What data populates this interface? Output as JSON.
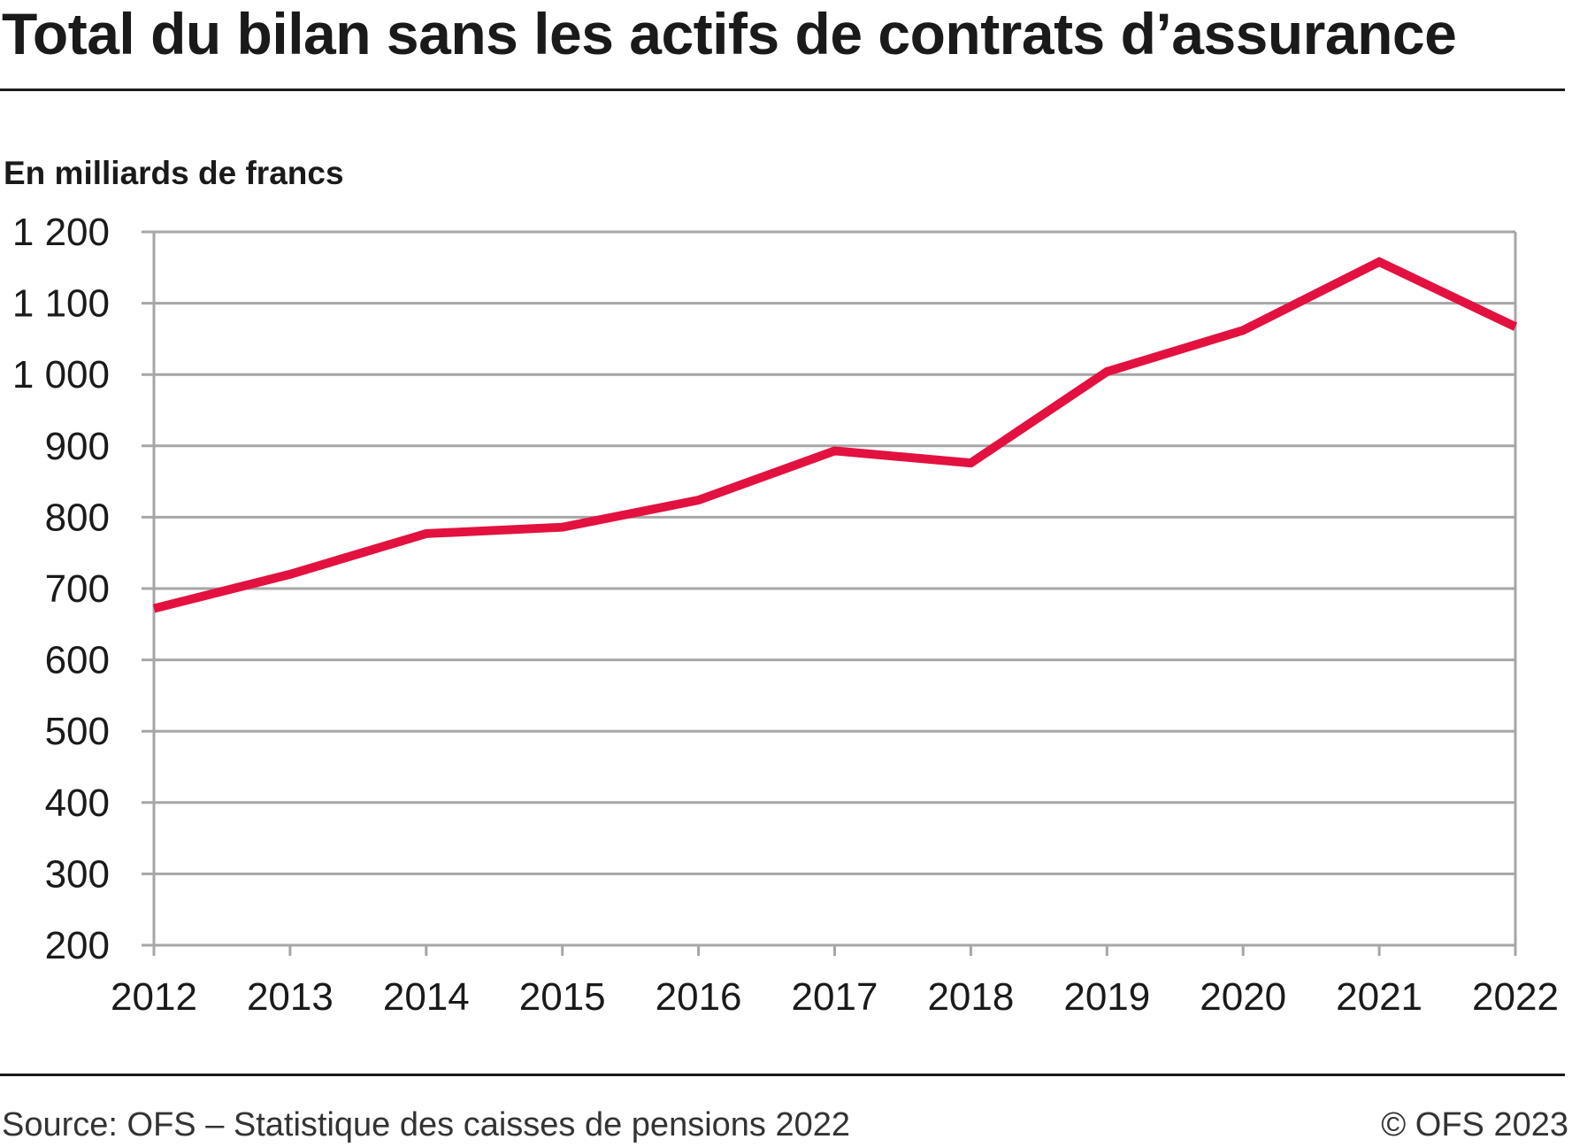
{
  "title": "Total du bilan sans les actifs de contrats d’assurance",
  "footer": {
    "source": "Source: OFS – Statistique des caisses de pensions 2022",
    "copyright": "© OFS 2023"
  },
  "colors": {
    "series": "#e3113f",
    "grid": "#a6a6a6",
    "text": "#1a1a1a"
  },
  "chart_data": {
    "type": "line",
    "ylabel": "En milliards de francs",
    "x": [
      "2012",
      "2013",
      "2014",
      "2015",
      "2016",
      "2017",
      "2018",
      "2019",
      "2020",
      "2021",
      "2022"
    ],
    "series": [
      {
        "values": [
          672,
          720,
          777,
          786,
          824,
          893,
          876,
          1004,
          1062,
          1158,
          1067
        ]
      }
    ],
    "ylim": [
      200,
      1200
    ],
    "yticks": [
      200,
      300,
      400,
      500,
      600,
      700,
      800,
      900,
      1000,
      1100,
      1200
    ],
    "ytick_labels": [
      "200",
      "300",
      "400",
      "500",
      "600",
      "700",
      "800",
      "900",
      "1 000",
      "1 100",
      "1 200"
    ],
    "grid": true,
    "legend": "none"
  }
}
